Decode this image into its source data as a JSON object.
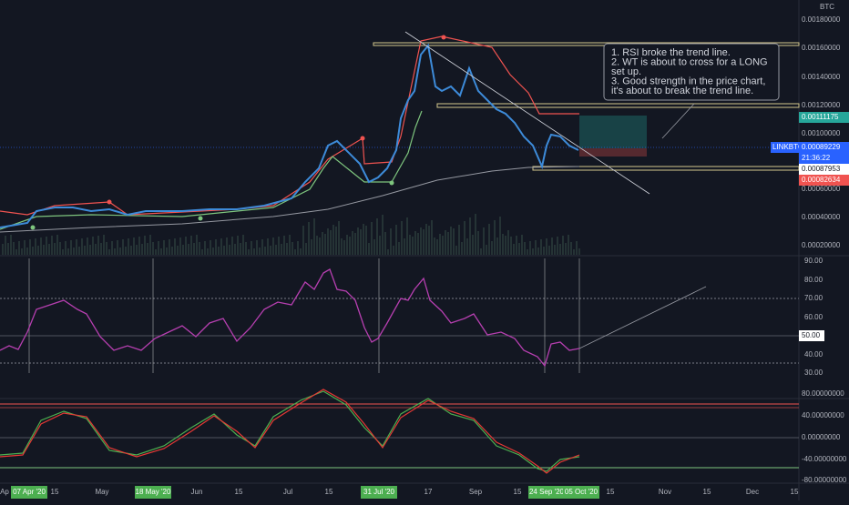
{
  "currency": "BTC",
  "price_axis": [
    "0.00180000",
    "0.00160000",
    "0.00140000",
    "0.00120000",
    "0.00100000",
    "0.00060000",
    "0.00040000",
    "0.00020000"
  ],
  "price_badges": {
    "target": "0.00111175",
    "symbol": "LINKBTC",
    "last": "0.00089229",
    "countdown": "21:36:22",
    "entry": "0.00087953",
    "stop": "0.00082634"
  },
  "rsi_axis": [
    "90.00",
    "80.00",
    "70.00",
    "60.00",
    "40.00",
    "30.00"
  ],
  "rsi_badge": "50.00",
  "wt_axis": [
    "80.00000000",
    "40.00000000",
    "0.00000000",
    "-40.00000000",
    "-80.00000000"
  ],
  "note": [
    "1. RSI broke the trend line.",
    "2. WT is about to cross for a LONG",
    "set up.",
    "3. Good strength in the price chart,",
    "it's about to break the trend line."
  ],
  "dates": [
    "Ap",
    "15",
    "May",
    "Jun",
    "15",
    "Jul",
    "15",
    "17",
    "Sep",
    "15",
    "15",
    "Nov",
    "15",
    "Dec",
    "15"
  ],
  "highlighted_dates": [
    "07 Apr '20",
    "18 May '20",
    "31 Jul '20",
    "24 Sep '20",
    "05 Oct '20"
  ]
}
